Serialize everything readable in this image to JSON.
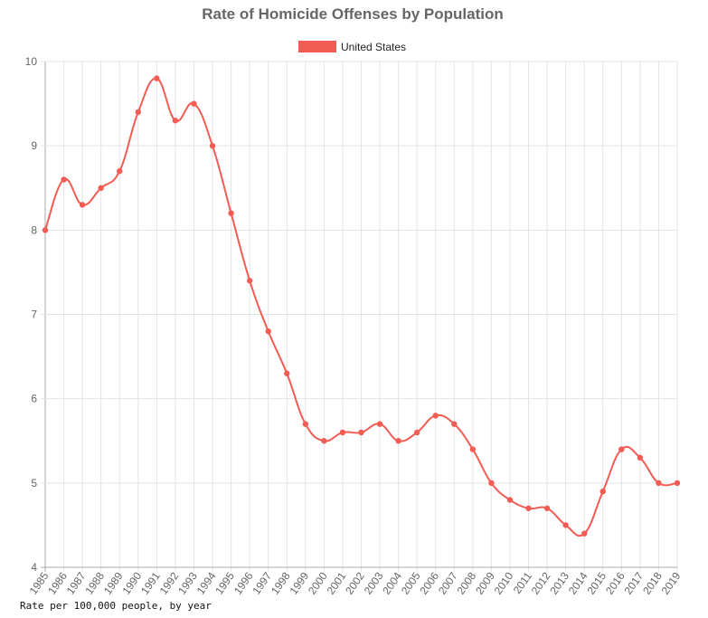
{
  "chart_data": {
    "type": "line",
    "title": "Rate of Homicide Offenses by Population",
    "xlabel": "",
    "ylabel": "",
    "ylim": [
      4,
      10
    ],
    "y_ticks": [
      4,
      5,
      6,
      7,
      8,
      9,
      10
    ],
    "grid": true,
    "legend_position": "top",
    "curve": "smooth",
    "x": [
      "1985",
      "1986",
      "1987",
      "1988",
      "1989",
      "1990",
      "1991",
      "1992",
      "1993",
      "1994",
      "1995",
      "1996",
      "1997",
      "1998",
      "1999",
      "2000",
      "2001",
      "2002",
      "2003",
      "2004",
      "2005",
      "2006",
      "2007",
      "2008",
      "2009",
      "2010",
      "2011",
      "2012",
      "2013",
      "2014",
      "2015",
      "2016",
      "2017",
      "2018",
      "2019"
    ],
    "series": [
      {
        "name": "United States",
        "color": "#f25c54",
        "values": [
          8.0,
          8.6,
          8.3,
          8.5,
          8.7,
          9.4,
          9.8,
          9.3,
          9.5,
          9.0,
          8.2,
          7.4,
          6.8,
          6.3,
          5.7,
          5.5,
          5.6,
          5.6,
          5.7,
          5.5,
          5.6,
          5.8,
          5.7,
          5.4,
          5.0,
          4.8,
          4.7,
          4.7,
          4.5,
          4.4,
          4.9,
          5.4,
          5.3,
          5.0,
          5.0
        ]
      }
    ]
  },
  "caption": "Rate per 100,000 people, by year"
}
